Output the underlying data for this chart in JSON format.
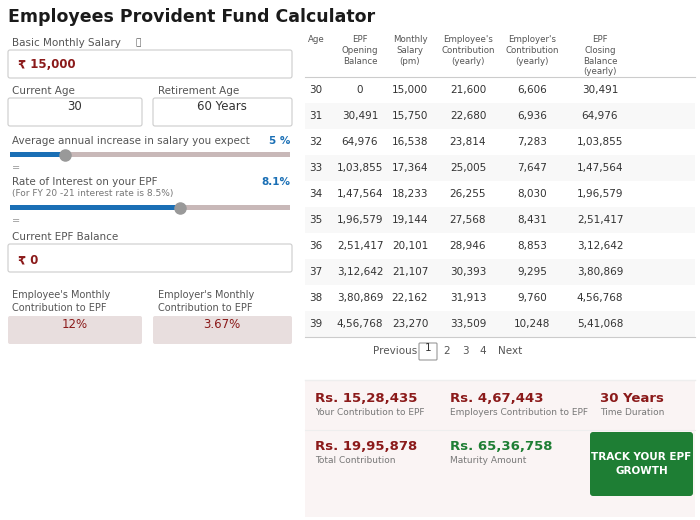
{
  "title": "Employees Provident Fund Calculator",
  "left_panel": {
    "basic_monthly_salary_label": "Basic Monthly Salary",
    "info_icon": "ⓘ",
    "basic_monthly_salary_value": "₹ 15,000",
    "current_age_label": "Current Age",
    "current_age_value": "30",
    "retirement_age_label": "Retirement Age",
    "retirement_age_value": "60 Years",
    "avg_increase_label": "Average annual increase in salary you expect",
    "avg_increase_value": "5 %",
    "interest_label": "Rate of Interest on your EPF",
    "interest_sub": "(For FY 20 -21 interest rate is 8.5%)",
    "interest_value": "8.1%",
    "epf_balance_label": "Current EPF Balance",
    "epf_balance_value": "₹ 0",
    "emp_monthly_label": "Employee's Monthly\nContribution to EPF",
    "emp_monthly_value": "12%",
    "employer_monthly_label": "Employer's Monthly\nContribution to EPF",
    "employer_monthly_value": "3.67%"
  },
  "table": {
    "col_headers": [
      "Age",
      "EPF\nOpening\nBalance",
      "Monthly\nSalary\n(pm)",
      "Employee's\nContribution\n(yearly)",
      "Employer's\nContribution\n(yearly)",
      "EPF\nClosing\nBalance\n(yearly)"
    ],
    "rows": [
      [
        "30",
        "0",
        "15,000",
        "21,600",
        "6,606",
        "30,491"
      ],
      [
        "31",
        "30,491",
        "15,750",
        "22,680",
        "6,936",
        "64,976"
      ],
      [
        "32",
        "64,976",
        "16,538",
        "23,814",
        "7,283",
        "1,03,855"
      ],
      [
        "33",
        "1,03,855",
        "17,364",
        "25,005",
        "7,647",
        "1,47,564"
      ],
      [
        "34",
        "1,47,564",
        "18,233",
        "26,255",
        "8,030",
        "1,96,579"
      ],
      [
        "35",
        "1,96,579",
        "19,144",
        "27,568",
        "8,431",
        "2,51,417"
      ],
      [
        "36",
        "2,51,417",
        "20,101",
        "28,946",
        "8,853",
        "3,12,642"
      ],
      [
        "37",
        "3,12,642",
        "21,107",
        "30,393",
        "9,295",
        "3,80,869"
      ],
      [
        "38",
        "3,80,869",
        "22,162",
        "31,913",
        "9,760",
        "4,56,768"
      ],
      [
        "39",
        "4,56,768",
        "23,270",
        "33,509",
        "10,248",
        "5,41,068"
      ]
    ],
    "pagination": [
      "Previous",
      "1",
      "2",
      "3",
      "4",
      "Next"
    ]
  },
  "summary": {
    "row1": [
      {
        "value": "Rs. 15,28,435",
        "label": "Your Contribution to EPF",
        "color": "#8B1A1A"
      },
      {
        "value": "Rs. 4,67,443",
        "label": "Employers Contribution to EPF",
        "color": "#8B1A1A"
      },
      {
        "value": "30 Years",
        "label": "Time Duration",
        "color": "#8B1A1A"
      }
    ],
    "row2": [
      {
        "value": "Rs. 19,95,878",
        "label": "Total Contribution",
        "color": "#8B1A1A"
      },
      {
        "value": "Rs. 65,36,758",
        "label": "Maturity Amount",
        "color": "#1e7e34"
      }
    ],
    "button_text": "TRACK YOUR EPF\nGROWTH",
    "button_color": "#1e7e34"
  },
  "colors": {
    "dark_red": "#8B1A1A",
    "title_color": "#1a1a1a",
    "label_color": "#555555",
    "sub_label_color": "#777777",
    "white": "#ffffff",
    "light_gray_bg": "#f5f5f5",
    "input_border": "#cccccc",
    "input_text": "#333333",
    "slider_blue": "#1a6fb5",
    "slider_filled": "#1a6fb5",
    "slider_track": "#c8b8b8",
    "table_header_color": "#555555",
    "table_text_color": "#333333",
    "row_bg_white": "#ffffff",
    "row_bg_light": "#f8f8f8",
    "separator": "#dddddd",
    "contrib_box_bg": "#e8dede",
    "summary_bg": "#faf4f4",
    "green": "#1e7e34",
    "pagination_box": "#f0f0f0"
  }
}
